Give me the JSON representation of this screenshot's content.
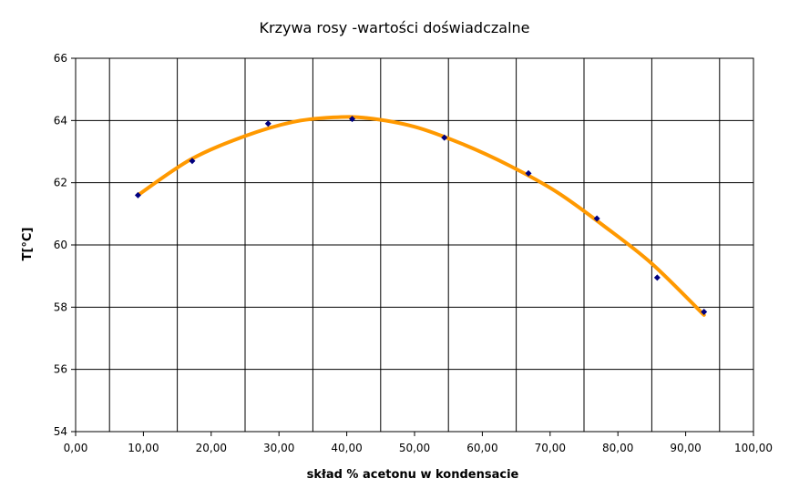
{
  "chart_data": {
    "type": "scatter",
    "title": "Krzywa rosy -wartości doświadczalne",
    "xlabel": "skład % acetonu w kondensacie",
    "ylabel": "T[°C]",
    "xlim": [
      0,
      100
    ],
    "ylim": [
      54,
      66
    ],
    "x_ticks": [
      0,
      10,
      20,
      30,
      40,
      50,
      60,
      70,
      80,
      90,
      100
    ],
    "x_tick_labels": [
      "0,00",
      "10,00",
      "20,00",
      "30,00",
      "40,00",
      "50,00",
      "60,00",
      "70,00",
      "80,00",
      "90,00",
      "100,00"
    ],
    "y_ticks": [
      54,
      56,
      58,
      60,
      62,
      64,
      66
    ],
    "y_tick_labels": [
      "54",
      "56",
      "58",
      "60",
      "62",
      "64",
      "66"
    ],
    "grid": true,
    "legend": "none",
    "series": [
      {
        "marker": "diamond",
        "color": "#000080",
        "points": [
          {
            "x": 9.2,
            "y": 61.6
          },
          {
            "x": 17.2,
            "y": 62.7
          },
          {
            "x": 28.4,
            "y": 63.9
          },
          {
            "x": 40.8,
            "y": 64.05
          },
          {
            "x": 54.4,
            "y": 63.45
          },
          {
            "x": 66.8,
            "y": 62.3
          },
          {
            "x": 76.9,
            "y": 60.85
          },
          {
            "x": 85.8,
            "y": 58.95
          },
          {
            "x": 92.7,
            "y": 57.85
          }
        ]
      }
    ],
    "trendline": {
      "type": "polynomial",
      "color": "#FF9900",
      "x_range": [
        9.2,
        92.7
      ],
      "points": [
        {
          "x": 9.2,
          "y": 61.6
        },
        {
          "x": 17.0,
          "y": 62.75
        },
        {
          "x": 25.0,
          "y": 63.5
        },
        {
          "x": 32.0,
          "y": 63.95
        },
        {
          "x": 38.0,
          "y": 64.1
        },
        {
          "x": 43.0,
          "y": 64.08
        },
        {
          "x": 50.0,
          "y": 63.8
        },
        {
          "x": 57.0,
          "y": 63.25
        },
        {
          "x": 64.0,
          "y": 62.55
        },
        {
          "x": 71.0,
          "y": 61.7
        },
        {
          "x": 78.0,
          "y": 60.6
        },
        {
          "x": 85.0,
          "y": 59.4
        },
        {
          "x": 92.7,
          "y": 57.75
        }
      ]
    }
  }
}
